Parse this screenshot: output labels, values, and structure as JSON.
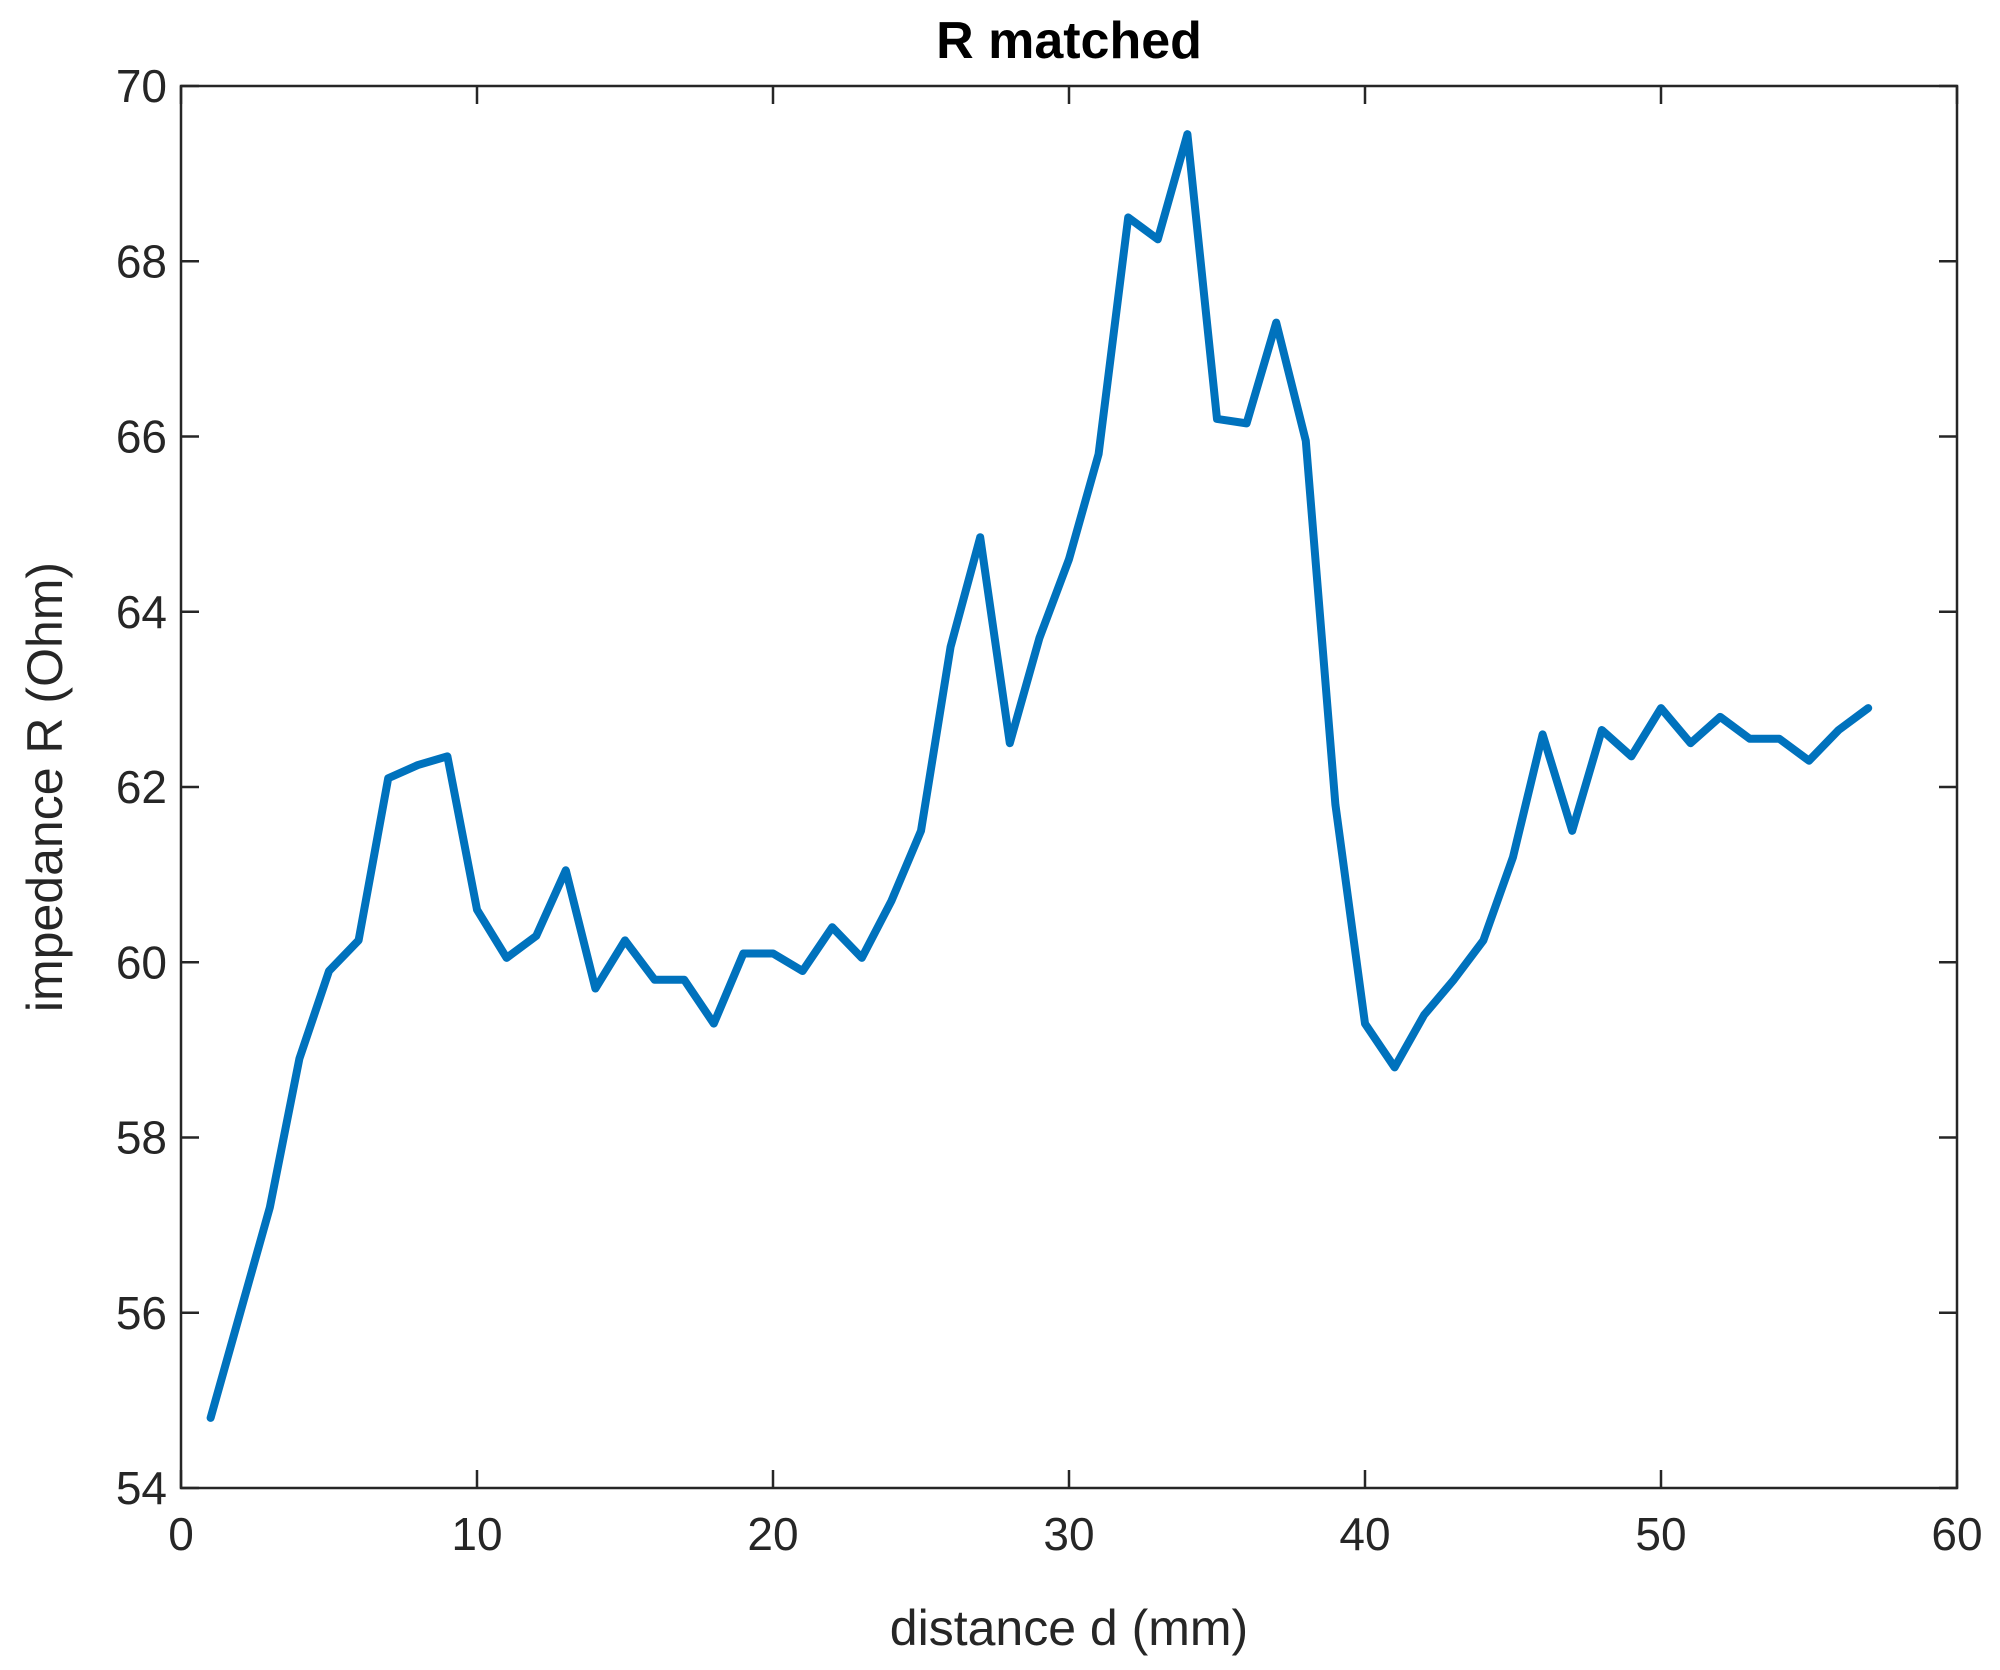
{
  "chart_data": {
    "type": "line",
    "title": "R matched",
    "xlabel": "distance d (mm)",
    "ylabel": "impedance R (Ohm)",
    "xlim": [
      0,
      60
    ],
    "ylim": [
      54,
      70
    ],
    "xticks": [
      0,
      10,
      20,
      30,
      40,
      50,
      60
    ],
    "yticks": [
      54,
      56,
      58,
      60,
      62,
      64,
      66,
      68,
      70
    ],
    "grid": false,
    "colors": {
      "line": "#0072BD",
      "axis": "#262626"
    },
    "series": [
      {
        "x": [
          1,
          2,
          3,
          4,
          5,
          6,
          7,
          8,
          9,
          10,
          11,
          12,
          13,
          14,
          15,
          16,
          17,
          18,
          19,
          20,
          21,
          22,
          23,
          24,
          25,
          26,
          27,
          28,
          29,
          30,
          31,
          32,
          33,
          34,
          35,
          36,
          37,
          38,
          39,
          40,
          41,
          42,
          43,
          44,
          45,
          46,
          47,
          48,
          49,
          50,
          51,
          52,
          53,
          54,
          55,
          56,
          57
        ],
        "y": [
          54.8,
          56.0,
          57.2,
          58.9,
          59.9,
          60.25,
          62.1,
          62.25,
          62.35,
          60.6,
          60.05,
          60.3,
          61.05,
          59.7,
          60.25,
          59.8,
          59.8,
          59.3,
          60.1,
          60.1,
          59.9,
          60.4,
          60.05,
          60.7,
          61.5,
          63.6,
          64.85,
          62.5,
          63.7,
          64.6,
          65.8,
          68.5,
          68.25,
          69.45,
          66.2,
          66.15,
          67.3,
          65.95,
          61.8,
          59.3,
          58.8,
          59.4,
          59.8,
          60.25,
          61.2,
          62.6,
          61.5,
          62.65,
          62.35,
          62.9,
          62.5,
          62.8,
          62.55,
          62.55,
          62.3,
          62.65,
          62.9
        ]
      }
    ]
  }
}
